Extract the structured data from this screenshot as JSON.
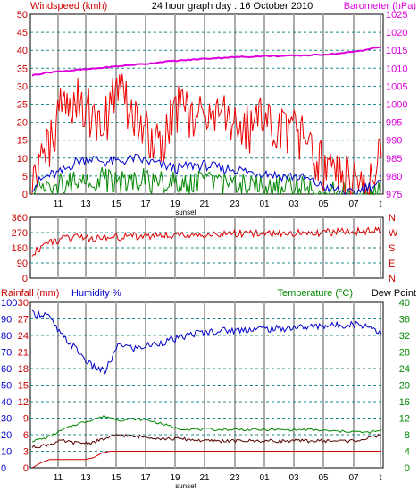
{
  "header": {
    "left": "Windspeed (kmh)",
    "center": "24 hour graph day : 16 October 2010",
    "right": "Barometer (hPa)"
  },
  "colors": {
    "background": "#ffffff",
    "grid_vertical": "#aaaaaa",
    "grid_horizontal": "#1b8a8a",
    "axis": "#000000",
    "wind_gust": "#ee0000",
    "wind_avg": "#0000cc",
    "wind_low": "#008800",
    "barometer": "#dd00dd",
    "direction": "#dd0000",
    "rainfall": "#cc0000",
    "humidity": "#0000cc",
    "temperature": "#008800",
    "dew_point": "#550000",
    "left_label": "#cc0000",
    "right_label_magenta": "#dd00dd",
    "right_label_green": "#008800"
  },
  "x_axis": {
    "hour_labels": [
      "11",
      "13",
      "15",
      "17",
      "19",
      "21",
      "23",
      "01",
      "03",
      "05",
      "07",
      "t"
    ],
    "sunset_label": "sunset"
  },
  "panel_titles": {
    "rainfall": "Rainfall (mm)",
    "humidity": "Humidity %",
    "temperature": "Temperature (°C)",
    "dew_point": "Dew Point"
  },
  "chart_data": [
    {
      "type": "line",
      "name": "wind-barometer",
      "ylabel_left": "Windspeed (kmh)",
      "ylabel_right": "Barometer (hPa)",
      "ylim_left": [
        0,
        50
      ],
      "ylim_right": [
        975,
        1025
      ],
      "left_ticks": [
        "50",
        "45",
        "40",
        "35",
        "30",
        "25",
        "20",
        "15",
        "10",
        "5",
        "0"
      ],
      "right_ticks": [
        "1025",
        "1020",
        "1015",
        "1010",
        "1005",
        "1000",
        "995",
        "990",
        "985",
        "980",
        "975"
      ],
      "x": [
        0,
        1,
        2,
        3,
        4,
        5,
        6,
        7,
        8,
        9,
        10,
        11,
        12,
        13,
        14,
        15,
        16,
        17,
        18,
        19,
        20,
        21,
        22,
        23,
        24
      ],
      "series": [
        {
          "values": [
            3,
            11,
            24,
            27,
            22,
            20,
            30,
            21,
            16,
            15,
            24,
            20,
            22,
            26,
            20,
            18,
            21,
            17,
            17,
            14,
            7,
            5,
            4,
            2,
            12
          ]
        },
        {
          "values": [
            2,
            5,
            6,
            9,
            10,
            9,
            9,
            10,
            9,
            8,
            7,
            8,
            8,
            7,
            7,
            6,
            6,
            5,
            5,
            4,
            2,
            1,
            0,
            2,
            3
          ]
        },
        {
          "values": [
            0,
            3,
            3,
            4,
            4,
            4,
            3,
            4,
            4,
            3,
            3,
            3,
            3,
            2,
            2,
            2,
            2,
            2,
            2,
            1,
            0,
            0,
            0,
            0,
            0
          ]
        },
        {
          "axis": "right",
          "values": [
            1008,
            1008.8,
            1009.2,
            1009.5,
            1009.8,
            1010.2,
            1010.6,
            1011,
            1011.3,
            1011.8,
            1012.1,
            1012.4,
            1012.7,
            1012.9,
            1013.1,
            1013.2,
            1013.4,
            1013.4,
            1013.5,
            1013.6,
            1013.8,
            1014.1,
            1014.5,
            1015.2,
            1016
          ]
        }
      ]
    },
    {
      "type": "line",
      "name": "wind-direction",
      "ylim": [
        0,
        360
      ],
      "left_ticks": [
        "360",
        "270",
        "180",
        "90",
        "0"
      ],
      "right_ticks": [
        "N",
        "W",
        "S",
        "E",
        "N"
      ],
      "x": [
        0,
        1,
        2,
        3,
        4,
        5,
        6,
        7,
        8,
        9,
        10,
        11,
        12,
        13,
        14,
        15,
        16,
        17,
        18,
        19,
        20,
        21,
        22,
        23,
        24
      ],
      "series": [
        {
          "values": [
            150,
            200,
            230,
            240,
            235,
            240,
            245,
            250,
            250,
            255,
            255,
            258,
            260,
            262,
            265,
            265,
            262,
            265,
            268,
            270,
            270,
            272,
            275,
            280,
            290
          ]
        }
      ]
    },
    {
      "type": "line",
      "name": "rain-humidity-temperature",
      "ylabel_left": "Rainfall (mm)",
      "ylabel_right": "Temperature (°C)",
      "ylim_humidity": [
        0,
        100
      ],
      "ylim_rain": [
        0,
        30
      ],
      "ylim_temperature": [
        0,
        40
      ],
      "left_ticks_humidity": [
        "100",
        "90",
        "80",
        "70",
        "60",
        "50",
        "40",
        "30",
        "20",
        "10",
        "0"
      ],
      "left_ticks_rain": [
        "30",
        "27",
        "24",
        "21",
        "18",
        "15",
        "12",
        "9",
        "6",
        "3",
        "0"
      ],
      "right_ticks": [
        "40",
        "36",
        "32",
        "28",
        "24",
        "20",
        "16",
        "12",
        "8",
        "4",
        "0"
      ],
      "x": [
        0,
        1,
        2,
        3,
        4,
        5,
        6,
        7,
        8,
        9,
        10,
        11,
        12,
        13,
        14,
        15,
        16,
        17,
        18,
        19,
        20,
        21,
        22,
        23,
        24
      ],
      "series": [
        {
          "values": [
            93,
            93,
            80,
            72,
            62,
            58,
            75,
            72,
            74,
            76,
            78,
            81,
            82,
            83,
            83,
            84,
            84,
            84,
            85,
            85,
            86,
            86,
            87,
            86,
            82
          ]
        },
        {
          "values": [
            6.5,
            7.2,
            9,
            10.5,
            11.5,
            12.5,
            11.5,
            11.8,
            11.5,
            10.5,
            9.5,
            9.3,
            9.3,
            9.2,
            9.3,
            9.2,
            9.2,
            9.2,
            9.2,
            9.2,
            9,
            8.8,
            8.8,
            8.5,
            9
          ]
        },
        {
          "values": [
            5,
            5.5,
            6.5,
            6,
            6,
            7,
            8,
            7.5,
            7.5,
            7,
            7,
            6.8,
            6.5,
            6.5,
            6.5,
            6.5,
            6.5,
            6.5,
            6.5,
            6.5,
            6.5,
            6.5,
            6.5,
            7,
            8
          ]
        },
        {
          "values": [
            0,
            1.5,
            1.5,
            1.5,
            1.5,
            3,
            3,
            3,
            3,
            3,
            3,
            3,
            3,
            3,
            3,
            3,
            3,
            3,
            3,
            3,
            3,
            3,
            3,
            3,
            3
          ]
        }
      ]
    }
  ]
}
